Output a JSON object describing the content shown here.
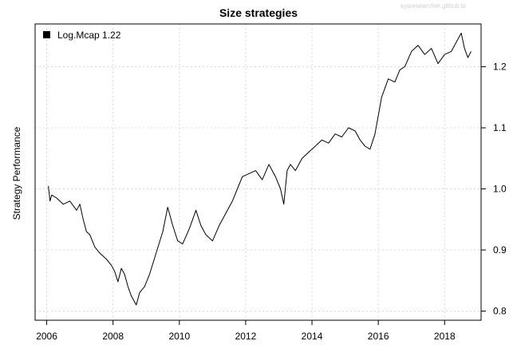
{
  "watermark": "sysresearcher.github.io",
  "chart_data": {
    "type": "line",
    "title": "Size strategies",
    "xlabel": "",
    "ylabel": "Strategy Performance",
    "x_ticks": [
      "2006",
      "2008",
      "2010",
      "2012",
      "2014",
      "2016",
      "2018"
    ],
    "y_ticks": [
      "0.8",
      "0.9",
      "1.0",
      "1.1",
      "1.2"
    ],
    "xlim": [
      2005.65,
      2019.1
    ],
    "ylim": [
      0.785,
      1.27
    ],
    "y_axis_side": "right",
    "grid": true,
    "legend_position": "top-left",
    "series": [
      {
        "name": "Log.Mcap 1.22",
        "color": "#000000",
        "x": [
          2006.05,
          2006.1,
          2006.15,
          2006.3,
          2006.5,
          2006.7,
          2006.9,
          2007.0,
          2007.1,
          2007.2,
          2007.3,
          2007.45,
          2007.6,
          2007.8,
          2007.95,
          2008.05,
          2008.15,
          2008.25,
          2008.35,
          2008.45,
          2008.55,
          2008.7,
          2008.8,
          2008.95,
          2009.1,
          2009.3,
          2009.5,
          2009.65,
          2009.8,
          2009.95,
          2010.1,
          2010.3,
          2010.5,
          2010.65,
          2010.8,
          2011.0,
          2011.2,
          2011.4,
          2011.6,
          2011.75,
          2011.9,
          2012.1,
          2012.3,
          2012.5,
          2012.7,
          2012.9,
          2013.05,
          2013.15,
          2013.25,
          2013.35,
          2013.5,
          2013.7,
          2013.9,
          2014.1,
          2014.3,
          2014.5,
          2014.7,
          2014.9,
          2015.1,
          2015.3,
          2015.45,
          2015.6,
          2015.75,
          2015.9,
          2016.1,
          2016.3,
          2016.5,
          2016.65,
          2016.8,
          2017.0,
          2017.2,
          2017.4,
          2017.6,
          2017.8,
          2018.0,
          2018.2,
          2018.4,
          2018.5,
          2018.6,
          2018.7,
          2018.8
        ],
        "values": [
          1.005,
          0.98,
          0.99,
          0.985,
          0.975,
          0.98,
          0.965,
          0.975,
          0.95,
          0.93,
          0.925,
          0.905,
          0.895,
          0.885,
          0.875,
          0.865,
          0.848,
          0.87,
          0.86,
          0.84,
          0.825,
          0.81,
          0.83,
          0.84,
          0.86,
          0.895,
          0.93,
          0.97,
          0.94,
          0.915,
          0.91,
          0.935,
          0.965,
          0.94,
          0.925,
          0.915,
          0.94,
          0.96,
          0.98,
          1.0,
          1.02,
          1.025,
          1.03,
          1.015,
          1.04,
          1.02,
          1.0,
          0.975,
          1.03,
          1.04,
          1.03,
          1.05,
          1.06,
          1.07,
          1.08,
          1.075,
          1.09,
          1.085,
          1.1,
          1.095,
          1.08,
          1.07,
          1.065,
          1.09,
          1.15,
          1.18,
          1.175,
          1.195,
          1.2,
          1.225,
          1.235,
          1.22,
          1.23,
          1.205,
          1.22,
          1.225,
          1.245,
          1.255,
          1.23,
          1.215,
          1.225
        ]
      }
    ]
  }
}
